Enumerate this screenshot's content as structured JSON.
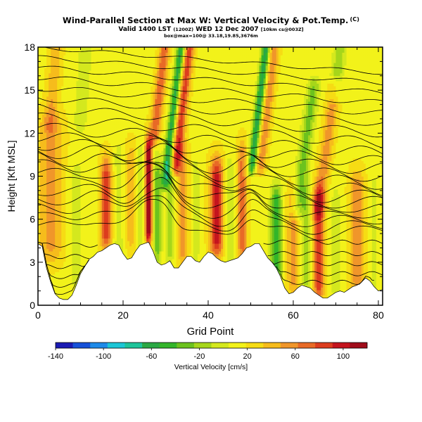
{
  "header": {
    "title": "Wind-Parallel Section at Max W: Vertical Velocity & Pot.Temp.",
    "title_units": "(C)",
    "subtitle_main": "Valid 1400 LST",
    "subtitle_utc": "(1200Z)",
    "subtitle_date": "WED 12 Dec 2007",
    "subtitle_res": "[10km cs@003Z]",
    "subtitle2": "box@max=100@ 33.18,19.85,3676m"
  },
  "chart_data": {
    "type": "heatmap",
    "xlabel": "Grid Point",
    "ylabel": "Height [Kft MSL]",
    "xlim": [
      0,
      81
    ],
    "ylim": [
      0,
      18
    ],
    "xticks": [
      0,
      20,
      40,
      60,
      80
    ],
    "yticks": [
      0,
      3,
      6,
      9,
      12,
      15,
      18
    ],
    "colorbar": {
      "label": "Vertical Velocity [cm/s]",
      "range": [
        -140,
        120
      ],
      "tick_values": [
        -140,
        -100,
        -60,
        -20,
        20,
        60,
        100
      ],
      "tick_labels": [
        "-140",
        "-100",
        "-60",
        "-20",
        "20",
        "60",
        "100"
      ],
      "colors": [
        "#1a1ab3",
        "#1650d8",
        "#1e8ae8",
        "#1cc6d6",
        "#1ec49a",
        "#2aa844",
        "#33b52a",
        "#6cc21e",
        "#a6d61a",
        "#d4e81e",
        "#f2f21a",
        "#f6dc14",
        "#f6bc1c",
        "#f0962a",
        "#e86a26",
        "#dc3c1e",
        "#c4141e",
        "#a00c1a"
      ]
    },
    "terrain_kft": [
      [
        0,
        4.3
      ],
      [
        1,
        4.1
      ],
      [
        2,
        2.6
      ],
      [
        3,
        1.6
      ],
      [
        4,
        0.8
      ],
      [
        5,
        0.5
      ],
      [
        6,
        0.4
      ],
      [
        7,
        0.4
      ],
      [
        8,
        0.7
      ],
      [
        9,
        1.4
      ],
      [
        10,
        2.2
      ],
      [
        11,
        2.7
      ],
      [
        12,
        3.2
      ],
      [
        13,
        3.4
      ],
      [
        14,
        3.7
      ],
      [
        15,
        3.8
      ],
      [
        16,
        4.0
      ],
      [
        17,
        4.2
      ],
      [
        18,
        4.3
      ],
      [
        19,
        4.2
      ],
      [
        20,
        3.6
      ],
      [
        21,
        3.2
      ],
      [
        22,
        3.3
      ],
      [
        23,
        3.8
      ],
      [
        24,
        4.2
      ],
      [
        25,
        4.3
      ],
      [
        26,
        4.4
      ],
      [
        27,
        3.8
      ],
      [
        28,
        3.0
      ],
      [
        29,
        2.8
      ],
      [
        30,
        2.9
      ],
      [
        31,
        3.1
      ],
      [
        32,
        2.6
      ],
      [
        33,
        2.6
      ],
      [
        34,
        3.0
      ],
      [
        35,
        3.4
      ],
      [
        36,
        3.4
      ],
      [
        37,
        3.1
      ],
      [
        38,
        3.0
      ],
      [
        39,
        3.4
      ],
      [
        40,
        3.7
      ],
      [
        41,
        3.6
      ],
      [
        42,
        3.3
      ],
      [
        43,
        3.1
      ],
      [
        44,
        3.0
      ],
      [
        45,
        3.1
      ],
      [
        46,
        3.2
      ],
      [
        47,
        3.3
      ],
      [
        48,
        3.6
      ],
      [
        49,
        4.0
      ],
      [
        50,
        4.1
      ],
      [
        51,
        4.3
      ],
      [
        52,
        4.3
      ],
      [
        53,
        3.8
      ],
      [
        54,
        3.3
      ],
      [
        55,
        3.0
      ],
      [
        56,
        2.6
      ],
      [
        57,
        2.0
      ],
      [
        58,
        1.2
      ],
      [
        59,
        0.8
      ],
      [
        60,
        0.9
      ],
      [
        61,
        1.2
      ],
      [
        62,
        1.4
      ],
      [
        63,
        1.3
      ],
      [
        64,
        1.2
      ],
      [
        65,
        0.9
      ],
      [
        66,
        0.7
      ],
      [
        67,
        0.5
      ],
      [
        68,
        0.5
      ],
      [
        69,
        0.7
      ],
      [
        70,
        0.9
      ],
      [
        71,
        1.0
      ],
      [
        72,
        0.9
      ],
      [
        73,
        1.1
      ],
      [
        74,
        1.3
      ],
      [
        75,
        1.4
      ],
      [
        76,
        1.6
      ],
      [
        77,
        1.9
      ],
      [
        78,
        1.7
      ],
      [
        79,
        1.3
      ],
      [
        80,
        1.0
      ],
      [
        81,
        1.1
      ]
    ],
    "w_features": [
      {
        "x": 3,
        "w": 35,
        "sx": 3.0,
        "z0": 4,
        "z1": 12
      },
      {
        "x": 9,
        "w": -15,
        "sx": 2.0,
        "z0": 2,
        "z1": 9
      },
      {
        "x": 16,
        "w": 70,
        "sx": 1.3,
        "z0": 5,
        "z1": 9
      },
      {
        "x": 19,
        "w": -20,
        "sx": 1.2,
        "z0": 4,
        "z1": 10
      },
      {
        "x": 22,
        "w": 30,
        "sx": 1.5,
        "z0": 5,
        "z1": 10
      },
      {
        "x": 24,
        "w": -25,
        "sx": 1.0,
        "z0": 4,
        "z1": 10
      },
      {
        "x": 26,
        "w": 125,
        "sx": 0.8,
        "z0": 5.5,
        "z1": 10.2
      },
      {
        "x": 28,
        "w": -45,
        "sx": 1.0,
        "z0": 4,
        "z1": 9
      },
      {
        "x": 31,
        "w": -35,
        "sx": 1.0,
        "z0": 4,
        "z1": 9
      },
      {
        "x": 34,
        "w": 40,
        "sx": 1.4,
        "z0": 4,
        "z1": 10
      },
      {
        "x": 37,
        "w": -20,
        "sx": 1.0,
        "z0": 4,
        "z1": 9
      },
      {
        "x": 42,
        "w": 80,
        "sx": 1.6,
        "z0": 4.5,
        "z1": 9
      },
      {
        "x": 45,
        "w": -25,
        "sx": 1.2,
        "z0": 4,
        "z1": 9
      },
      {
        "x": 48,
        "w": 50,
        "sx": 1.2,
        "z0": 4,
        "z1": 10
      },
      {
        "x": 56,
        "w": -70,
        "sx": 1.3,
        "z0": 2.5,
        "z1": 7
      },
      {
        "x": 60,
        "w": 40,
        "sx": 1.5,
        "z0": 2,
        "z1": 7
      },
      {
        "x": 63,
        "w": -35,
        "sx": 1.2,
        "z0": 2,
        "z1": 7
      },
      {
        "x": 66,
        "w": 70,
        "sx": 1.3,
        "z0": 1.5,
        "z1": 7
      },
      {
        "x": 70,
        "w": -20,
        "sx": 1.2,
        "z0": 1.5,
        "z1": 7
      },
      {
        "x": 75,
        "w": 45,
        "sx": 1.8,
        "z0": 2,
        "z1": 8
      },
      {
        "x": 79,
        "w": -15,
        "sx": 1.2,
        "z0": 2,
        "z1": 8
      }
    ],
    "w_waves": [
      {
        "x0": 30,
        "z0": 9,
        "slope": 2.5,
        "w": -75,
        "sx": 1.0,
        "zmin": 9,
        "zmax": 18
      },
      {
        "x0": 32,
        "z0": 9,
        "slope": 2.5,
        "w": 70,
        "sx": 1.2,
        "zmin": 10,
        "zmax": 18
      },
      {
        "x0": 27,
        "z0": 11,
        "slope": 2.5,
        "w": 60,
        "sx": 1.2,
        "zmin": 12,
        "zmax": 18
      },
      {
        "x0": 50,
        "z0": 9,
        "slope": 2.5,
        "w": -80,
        "sx": 1.0,
        "zmin": 10,
        "zmax": 18
      },
      {
        "x0": 52,
        "z0": 9,
        "slope": 2.5,
        "w": 45,
        "sx": 1.2,
        "zmin": 10,
        "zmax": 18
      },
      {
        "x0": 61,
        "z0": 7,
        "slope": 2.2,
        "w": -45,
        "sx": 1.5,
        "zmin": 7,
        "zmax": 15
      },
      {
        "x0": 66,
        "z0": 7,
        "slope": 2.2,
        "w": 40,
        "sx": 1.5,
        "zmin": 7,
        "zmax": 15
      },
      {
        "x0": 3,
        "z0": 13,
        "slope": 4.0,
        "w": 30,
        "sx": 1.5,
        "zmin": 13,
        "zmax": 18
      },
      {
        "x0": 10,
        "z0": 13,
        "slope": 4.0,
        "w": -25,
        "sx": 1.5,
        "zmin": 13,
        "zmax": 18
      },
      {
        "x0": 70,
        "z0": 15,
        "slope": 3.0,
        "w": -35,
        "sx": 1.5,
        "zmin": 15,
        "zmax": 18
      }
    ],
    "w_base": 15,
    "theta_contours": [
      {
        "base": 5.4,
        "amp": 0.6,
        "decay": 0.95,
        "dx": 0
      },
      {
        "base": 5.9,
        "amp": 0.6,
        "decay": 0.95,
        "dx": 0
      },
      {
        "base": 6.4,
        "amp": 0.7,
        "decay": 0.92,
        "dx": 0
      },
      {
        "base": 6.9,
        "amp": 0.7,
        "decay": 0.9,
        "dx": 0
      },
      {
        "base": 7.4,
        "amp": 0.7,
        "decay": 0.9,
        "dx": 0
      },
      {
        "base": 7.9,
        "amp": 0.8,
        "decay": 0.9,
        "dx": 0
      },
      {
        "base": 8.4,
        "amp": 0.8,
        "decay": 0.88,
        "dx": 0
      },
      {
        "base": 8.9,
        "amp": 0.8,
        "decay": 0.88,
        "dx": 0
      },
      {
        "base": 9.4,
        "amp": 0.9,
        "decay": 0.85,
        "dx": 0
      },
      {
        "base": 9.9,
        "amp": 0.9,
        "decay": 0.85,
        "dx": 0
      },
      {
        "base": 10.4,
        "amp": 0.9,
        "decay": 0.8,
        "dx": 0
      },
      {
        "base": 10.9,
        "amp": 0.8,
        "decay": 0.75,
        "dx": 0
      },
      {
        "base": 11.5,
        "amp": 0.8,
        "decay": 0.7,
        "dx": 0
      },
      {
        "base": 12.2,
        "amp": 0.7,
        "decay": 0.65,
        "dx": 0
      },
      {
        "base": 12.9,
        "amp": 0.6,
        "decay": 0.6,
        "dx": 0
      },
      {
        "base": 13.6,
        "amp": 0.5,
        "decay": 0.55,
        "dx": 0
      },
      {
        "base": 14.3,
        "amp": 0.45,
        "decay": 0.5,
        "dx": 0
      },
      {
        "base": 15.0,
        "amp": 0.4,
        "decay": 0.5,
        "dx": 0
      },
      {
        "base": 15.7,
        "amp": 0.35,
        "decay": 0.5,
        "dx": 0
      },
      {
        "base": 16.4,
        "amp": 0.3,
        "decay": 0.5,
        "dx": 0
      },
      {
        "base": 17.1,
        "amp": 0.25,
        "decay": 0.5,
        "dx": 0
      }
    ],
    "low_contours": [
      {
        "z": 0.9,
        "x0": 3,
        "x1": 12
      },
      {
        "z": 1.4,
        "x0": 2,
        "x1": 11
      },
      {
        "z": 2.0,
        "x0": 1,
        "x1": 11
      },
      {
        "z": 2.7,
        "x0": 0,
        "x1": 11
      },
      {
        "z": 3.4,
        "x0": 0,
        "x1": 12
      },
      {
        "z": 4.2,
        "x0": 0,
        "x1": 14
      },
      {
        "z": 1.6,
        "x0": 57,
        "x1": 79
      },
      {
        "z": 2.2,
        "x0": 56,
        "x1": 81
      },
      {
        "z": 2.9,
        "x0": 55,
        "x1": 81
      },
      {
        "z": 3.6,
        "x0": 54,
        "x1": 81
      },
      {
        "z": 4.4,
        "x0": 53,
        "x1": 81
      }
    ]
  }
}
